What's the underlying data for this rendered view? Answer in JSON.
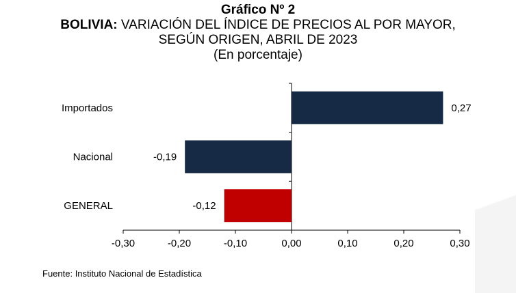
{
  "title": {
    "line1": "Gráfico Nº 2",
    "line2_bold": "BOLIVIA:",
    "line2_rest": " VARIACIÓN DEL ÍNDICE DE PRECIOS AL POR MAYOR,",
    "line3": "SEGÚN ORIGEN, ABRIL DE 2023",
    "line4": "(En porcentaje)"
  },
  "colors": {
    "navy": "#172a45",
    "red": "#c00000"
  },
  "chart_data": {
    "type": "bar",
    "orientation": "horizontal",
    "categories": [
      "Importados",
      "Nacional",
      "GENERAL"
    ],
    "values": [
      0.27,
      -0.19,
      -0.12
    ],
    "value_labels": [
      "0,27",
      "-0,19",
      "-0,12"
    ],
    "bar_colors": [
      "#172a45",
      "#172a45",
      "#c00000"
    ],
    "xlim": [
      -0.3,
      0.3
    ],
    "xticks": [
      -0.3,
      -0.2,
      -0.1,
      0.0,
      0.1,
      0.2,
      0.3
    ],
    "xtick_labels": [
      "-0,30",
      "-0,20",
      "-0,10",
      "0,00",
      "0,10",
      "0,20",
      "0,30"
    ],
    "grid": false
  },
  "source": "Fuente: Instituto Nacional de Estadística"
}
